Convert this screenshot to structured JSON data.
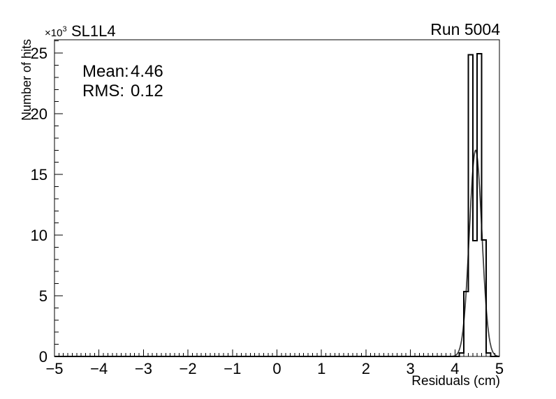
{
  "header": {
    "title": "SL1L4",
    "run_label": "Run 5004"
  },
  "stats_box": {
    "mean_label": "Mean:",
    "mean_value": "4.46",
    "rms_label": "RMS:",
    "rms_value": "0.12"
  },
  "axes": {
    "x_title": "Residuals (cm)",
    "y_title": "Number of hits",
    "y_scale_prefix": "×10",
    "y_scale_exponent": "3"
  },
  "chart_data": {
    "type": "bar",
    "subtype": "histogram-with-fit",
    "title": "SL1L4",
    "corner_label": "Run 5004",
    "xlabel": "Residuals (cm)",
    "ylabel": "Number of hits",
    "y_unit_scale": "×10³",
    "xlim": [
      -5,
      5
    ],
    "ylim": [
      0,
      26.1
    ],
    "grid": false,
    "legend": "none",
    "x_tick_values": [
      -5,
      -4,
      -3,
      -2,
      -1,
      0,
      1,
      2,
      3,
      4,
      5
    ],
    "x_tick_labels": [
      "−5",
      "−4",
      "−3",
      "−2",
      "−1",
      "0",
      "1",
      "2",
      "3",
      "4",
      "5"
    ],
    "x_minor_step": 0.1,
    "y_tick_values": [
      0,
      5,
      10,
      15,
      20,
      25
    ],
    "y_tick_labels": [
      "0",
      "5",
      "10",
      "15",
      "20",
      "25"
    ],
    "y_minor_step": 1,
    "bins_unit": "10^3 hits",
    "bins": [
      {
        "x1": 4.1,
        "x2": 4.2,
        "y": 0.3
      },
      {
        "x1": 4.2,
        "x2": 4.3,
        "y": 5.35
      },
      {
        "x1": 4.3,
        "x2": 4.4,
        "y": 24.85
      },
      {
        "x1": 4.4,
        "x2": 4.5,
        "y": 9.55
      },
      {
        "x1": 4.5,
        "x2": 4.6,
        "y": 24.95
      },
      {
        "x1": 4.6,
        "x2": 4.7,
        "y": 9.6
      },
      {
        "x1": 4.7,
        "x2": 4.8,
        "y": 0.3
      }
    ],
    "fit_curve": {
      "shape": "gaussian",
      "amplitude": 17.0,
      "mean": 4.465,
      "sigma": 0.14,
      "draw_range": [
        3.9,
        5.0
      ]
    },
    "stats": {
      "mean": 4.46,
      "rms": 0.12
    },
    "colors": {
      "histogram": "#000000",
      "fit": "#3a3a3a",
      "frame": "#000000",
      "text": "#000000",
      "background": "#ffffff"
    }
  }
}
